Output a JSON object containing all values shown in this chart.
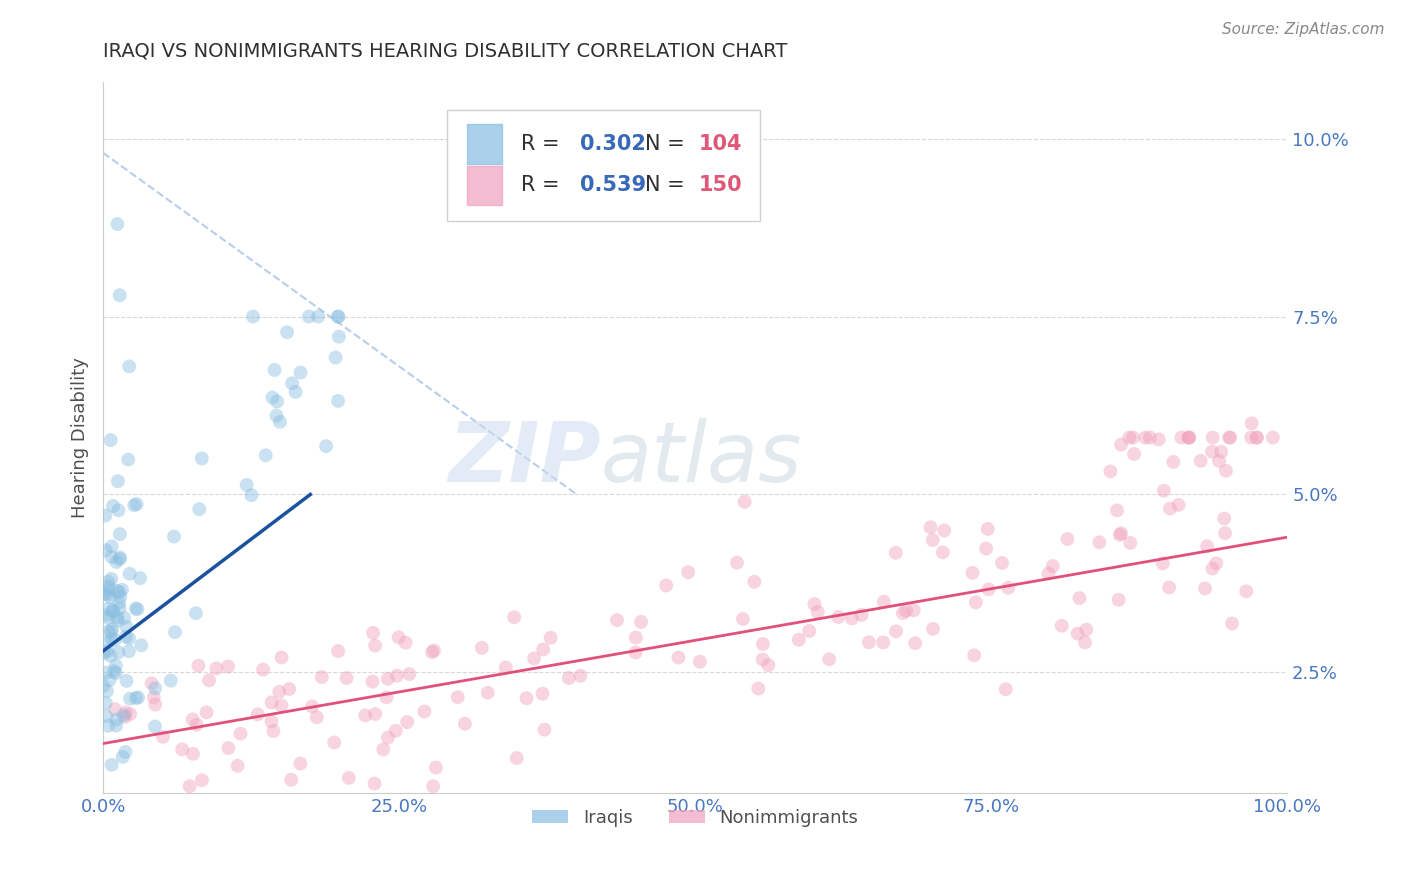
{
  "title": "IRAQI VS NONIMMIGRANTS HEARING DISABILITY CORRELATION CHART",
  "source_text": "Source: ZipAtlas.com",
  "ylabel": "Hearing Disability",
  "xlim": [
    0.0,
    1.0
  ],
  "ylim": [
    0.008,
    0.108
  ],
  "yticks": [
    0.025,
    0.05,
    0.075,
    0.1
  ],
  "ytick_labels": [
    "2.5%",
    "5.0%",
    "7.5%",
    "10.0%"
  ],
  "xticks": [
    0.0,
    0.25,
    0.5,
    0.75,
    1.0
  ],
  "xtick_labels": [
    "0.0%",
    "25.0%",
    "50.0%",
    "75.0%",
    "100.0%"
  ],
  "iraqis_color": "#88bde0",
  "nonimmigrants_color": "#f0a0bc",
  "iraqis_line_color": "#1a52a0",
  "nonimmigrants_line_color": "#e0507a",
  "diagonal_color": "#b0c8e8",
  "background_color": "#ffffff",
  "grid_color": "#d8d8d8",
  "title_color": "#303030",
  "axis_label_color": "#505050",
  "tick_color": "#4878c0",
  "legend_r_color": "#3868b8",
  "legend_n_color": "#e05878",
  "iraqis_R": 0.302,
  "iraqis_N": 104,
  "nonimmigrants_R": 0.539,
  "nonimmigrants_N": 150,
  "marker_size": 100,
  "marker_alpha": 0.45
}
